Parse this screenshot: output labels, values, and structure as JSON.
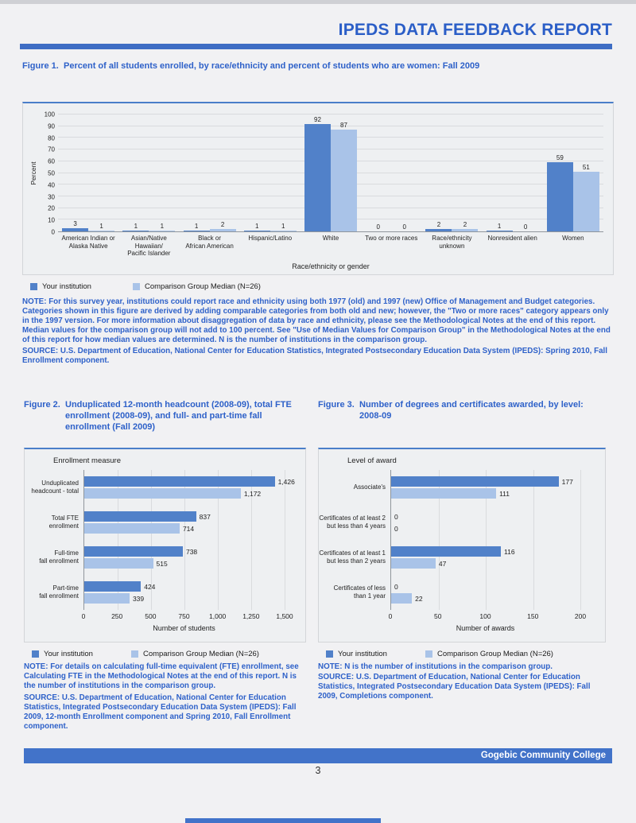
{
  "page": {
    "header_title": "IPEDS DATA FEEDBACK REPORT",
    "footer_institution": "Gogebic Community College",
    "page_number": "3"
  },
  "colors": {
    "accent_blue": "#2e61c9",
    "header_bar": "#3e6dc4",
    "footer_bar": "#4273c9",
    "bar_institution": "#5181c9",
    "bar_median": "#a9c3e8"
  },
  "legend": {
    "institution": "Your institution",
    "median": "Comparison Group Median (N=26)"
  },
  "figure1": {
    "label": "Figure 1.",
    "title": "Percent of all students enrolled, by race/ethnicity and percent of students who are women: Fall 2009",
    "note": "NOTE: For this survey year, institutions could report race and ethnicity using both 1977 (old) and 1997 (new) Office of Management and Budget categories. Categories shown in this figure are derived by adding comparable categories from both old and new; however, the \"Two or more races\" category appears only in the 1997 version. For more information about disaggregation of data by race and ethnicity, please see the Methodological Notes at the end of this report. Median values for the comparison group will not add to 100 percent. See \"Use of Median Values for Comparison Group\" in the Methodological Notes at the end of this report for how median values are determined. N is the number of institutions in the comparison group.",
    "source": "SOURCE: U.S. Department of Education, National Center for Education Statistics, Integrated Postsecondary Education Data System (IPEDS): Spring 2010, Fall Enrollment component.",
    "chart_data": {
      "type": "bar",
      "orientation": "vertical",
      "title": "Percent of all students enrolled, by race/ethnicity and percent of students who are women: Fall 2009",
      "categories": [
        "American Indian or\nAlaska Native",
        "Asian/Native Hawaiian/\nPacific Islander",
        "Black or\nAfrican American",
        "Hispanic/Latino",
        "White",
        "Two or more races",
        "Race/ethnicity\nunknown",
        "Nonresident alien",
        "Women"
      ],
      "series": [
        {
          "name": "Your institution",
          "values": [
            3,
            1,
            1,
            1,
            92,
            0,
            2,
            1,
            59
          ]
        },
        {
          "name": "Comparison Group Median (N=26)",
          "values": [
            1,
            1,
            2,
            1,
            87,
            0,
            2,
            0,
            51
          ]
        }
      ],
      "xlabel": "Race/ethnicity or gender",
      "ylabel": "Percent",
      "ylim": [
        0,
        100
      ],
      "yticks": [
        0,
        10,
        20,
        30,
        40,
        50,
        60,
        70,
        80,
        90,
        100
      ],
      "grid": "horizontal",
      "legend_position": "bottom"
    }
  },
  "figure2": {
    "label": "Figure 2.",
    "title": "Unduplicated 12-month headcount (2008-09), total FTE enrollment (2008-09), and full- and part-time fall enrollment (Fall 2009)",
    "note": "NOTE: For details on calculating full-time equivalent (FTE) enrollment, see Calculating FTE in the Methodological Notes at the end of this report. N is the number of institutions in the comparison group.",
    "source": "SOURCE: U.S. Department of Education, National Center for Education Statistics, Integrated Postsecondary Education Data System (IPEDS): Fall 2009, 12-month Enrollment component and Spring 2010, Fall Enrollment component.",
    "chart_data": {
      "type": "bar",
      "orientation": "horizontal",
      "axis_title": "Enrollment measure",
      "categories": [
        "Unduplicated\nheadcount - total",
        "Total FTE\nenrollment",
        "Full-time\nfall enrollment",
        "Part-time\nfall enrollment"
      ],
      "series": [
        {
          "name": "Your institution",
          "values": [
            1426,
            837,
            738,
            424
          ],
          "labels": [
            "1,426",
            "837",
            "738",
            "424"
          ]
        },
        {
          "name": "Comparison Group Median (N=26)",
          "values": [
            1172,
            714,
            515,
            339
          ],
          "labels": [
            "1,172",
            "714",
            "515",
            "339"
          ]
        }
      ],
      "xlabel": "Number of students",
      "xlim": [
        0,
        1500
      ],
      "xtick_values": [
        0,
        250,
        500,
        750,
        1000,
        1250,
        1500
      ],
      "xtick_labels": [
        "0",
        "250",
        "500",
        "750",
        "1,000",
        "1,250",
        "1,500"
      ],
      "grid": "vertical",
      "legend_position": "bottom"
    }
  },
  "figure3": {
    "label": "Figure 3.",
    "title": "Number of degrees and certificates awarded, by level: 2008-09",
    "note": "NOTE: N is the number of institutions in the comparison group.",
    "source": "SOURCE: U.S. Department of Education, National Center for Education Statistics, Integrated Postsecondary Education Data System (IPEDS): Fall 2009, Completions component.",
    "chart_data": {
      "type": "bar",
      "orientation": "horizontal",
      "axis_title": "Level of award",
      "categories": [
        "Associate's",
        "Certificates of at least 2\nbut less than 4 years",
        "Certificates of at least 1\nbut  less than 2 years",
        "Certificates of less\nthan 1 year"
      ],
      "series": [
        {
          "name": "Your institution",
          "values": [
            177,
            0,
            116,
            0
          ],
          "labels": [
            "177",
            "0",
            "116",
            "0"
          ]
        },
        {
          "name": "Comparison Group Median (N=26)",
          "values": [
            111,
            0,
            47,
            22
          ],
          "labels": [
            "111",
            "0",
            "47",
            "22"
          ]
        }
      ],
      "xlabel": "Number of awards",
      "xlim": [
        0,
        200
      ],
      "xtick_values": [
        0,
        50,
        100,
        150,
        200
      ],
      "xtick_labels": [
        "0",
        "50",
        "100",
        "150",
        "200"
      ],
      "grid": "vertical",
      "legend_position": "bottom"
    }
  }
}
